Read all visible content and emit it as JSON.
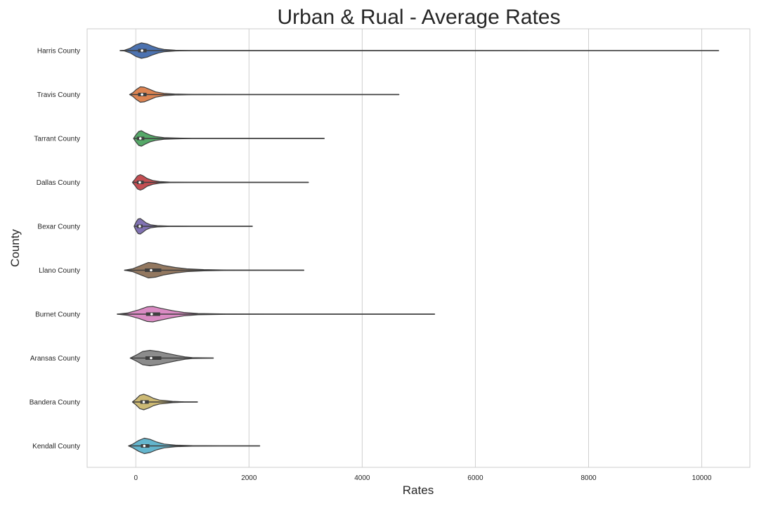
{
  "chart_data": {
    "type": "violin",
    "orientation": "horizontal",
    "title": "Urban & Rual - Average Rates",
    "xlabel": "Rates",
    "ylabel": "County",
    "xlim": [
      -860,
      10850
    ],
    "xticks": [
      0,
      2000,
      4000,
      6000,
      8000,
      10000
    ],
    "grid": "x",
    "legend": "none",
    "style": {
      "grid_color": "#d0d0d0",
      "frame_color": "#cccccc",
      "line_color": "#3f3f3f",
      "background": "#ffffff"
    },
    "series": [
      {
        "category": "Harris County",
        "color": "#4c72b0",
        "min": -280,
        "q1": 40,
        "median": 110,
        "q3": 190,
        "max": 10300,
        "profile": [
          [
            -280,
            0.0
          ],
          [
            -200,
            0.05
          ],
          [
            -100,
            0.3
          ],
          [
            0,
            0.75
          ],
          [
            100,
            1.0
          ],
          [
            200,
            0.85
          ],
          [
            300,
            0.55
          ],
          [
            400,
            0.3
          ],
          [
            500,
            0.15
          ],
          [
            700,
            0.05
          ],
          [
            1000,
            0.02
          ],
          [
            2000,
            0.008
          ],
          [
            5000,
            0.005
          ],
          [
            10300,
            0.003
          ]
        ]
      },
      {
        "category": "Travis County",
        "color": "#dd8452",
        "min": -110,
        "q1": 40,
        "median": 110,
        "q3": 190,
        "max": 4650,
        "profile": [
          [
            -110,
            0.0
          ],
          [
            -50,
            0.25
          ],
          [
            0,
            0.6
          ],
          [
            80,
            1.0
          ],
          [
            150,
            0.95
          ],
          [
            250,
            0.65
          ],
          [
            350,
            0.35
          ],
          [
            500,
            0.15
          ],
          [
            700,
            0.06
          ],
          [
            1000,
            0.03
          ],
          [
            2000,
            0.01
          ],
          [
            4650,
            0.005
          ]
        ]
      },
      {
        "category": "Tarrant County",
        "color": "#55a868",
        "min": -40,
        "q1": 20,
        "median": 80,
        "q3": 150,
        "max": 3330,
        "profile": [
          [
            -40,
            0.0
          ],
          [
            0,
            0.45
          ],
          [
            50,
            0.9
          ],
          [
            100,
            1.0
          ],
          [
            160,
            0.75
          ],
          [
            250,
            0.45
          ],
          [
            350,
            0.25
          ],
          [
            500,
            0.1
          ],
          [
            700,
            0.05
          ],
          [
            1000,
            0.02
          ],
          [
            3330,
            0.005
          ]
        ]
      },
      {
        "category": "Dallas County",
        "color": "#c44e52",
        "min": -60,
        "q1": 20,
        "median": 70,
        "q3": 140,
        "max": 3050,
        "profile": [
          [
            -60,
            0.0
          ],
          [
            -20,
            0.35
          ],
          [
            30,
            0.85
          ],
          [
            80,
            1.0
          ],
          [
            130,
            0.85
          ],
          [
            200,
            0.5
          ],
          [
            300,
            0.25
          ],
          [
            420,
            0.1
          ],
          [
            600,
            0.04
          ],
          [
            1000,
            0.015
          ],
          [
            3050,
            0.005
          ]
        ]
      },
      {
        "category": "Bexar County",
        "color": "#8172b3",
        "min": -30,
        "q1": 20,
        "median": 70,
        "q3": 120,
        "max": 2060,
        "profile": [
          [
            -30,
            0.0
          ],
          [
            0,
            0.5
          ],
          [
            40,
            0.95
          ],
          [
            80,
            1.0
          ],
          [
            120,
            0.8
          ],
          [
            180,
            0.45
          ],
          [
            260,
            0.2
          ],
          [
            380,
            0.08
          ],
          [
            600,
            0.03
          ],
          [
            1000,
            0.012
          ],
          [
            2060,
            0.005
          ]
        ]
      },
      {
        "category": "Llano County",
        "color": "#937860",
        "min": -200,
        "q1": 160,
        "median": 270,
        "q3": 450,
        "max": 2970,
        "profile": [
          [
            -200,
            0.0
          ],
          [
            -50,
            0.2
          ],
          [
            100,
            0.65
          ],
          [
            220,
            1.0
          ],
          [
            350,
            0.9
          ],
          [
            500,
            0.6
          ],
          [
            700,
            0.35
          ],
          [
            900,
            0.18
          ],
          [
            1200,
            0.08
          ],
          [
            1600,
            0.03
          ],
          [
            2970,
            0.005
          ]
        ]
      },
      {
        "category": "Burnet County",
        "color": "#da8bc3",
        "min": -330,
        "q1": 180,
        "median": 280,
        "q3": 430,
        "max": 5280,
        "profile": [
          [
            -330,
            0.0
          ],
          [
            -150,
            0.15
          ],
          [
            50,
            0.55
          ],
          [
            200,
            0.95
          ],
          [
            300,
            1.0
          ],
          [
            450,
            0.75
          ],
          [
            650,
            0.45
          ],
          [
            850,
            0.22
          ],
          [
            1100,
            0.08
          ],
          [
            1600,
            0.03
          ],
          [
            3000,
            0.01
          ],
          [
            5280,
            0.005
          ]
        ]
      },
      {
        "category": "Aransas County",
        "color": "#8c8c8c",
        "min": -100,
        "q1": 170,
        "median": 270,
        "q3": 450,
        "max": 1370,
        "profile": [
          [
            -100,
            0.0
          ],
          [
            0,
            0.35
          ],
          [
            120,
            0.85
          ],
          [
            250,
            1.0
          ],
          [
            400,
            0.85
          ],
          [
            560,
            0.6
          ],
          [
            720,
            0.35
          ],
          [
            870,
            0.15
          ],
          [
            1000,
            0.05
          ],
          [
            1370,
            0.01
          ]
        ]
      },
      {
        "category": "Bandera County",
        "color": "#ccb974",
        "min": -60,
        "q1": 80,
        "median": 140,
        "q3": 230,
        "max": 1090,
        "profile": [
          [
            -60,
            0.0
          ],
          [
            0,
            0.35
          ],
          [
            70,
            0.85
          ],
          [
            140,
            1.0
          ],
          [
            220,
            0.8
          ],
          [
            320,
            0.45
          ],
          [
            420,
            0.25
          ],
          [
            520,
            0.18
          ],
          [
            650,
            0.08
          ],
          [
            850,
            0.03
          ],
          [
            1090,
            0.01
          ]
        ]
      },
      {
        "category": "Kendall County",
        "color": "#64b5cd",
        "min": -130,
        "q1": 90,
        "median": 150,
        "q3": 240,
        "max": 2190,
        "profile": [
          [
            -130,
            0.0
          ],
          [
            -50,
            0.25
          ],
          [
            50,
            0.7
          ],
          [
            150,
            1.0
          ],
          [
            250,
            0.85
          ],
          [
            370,
            0.5
          ],
          [
            500,
            0.25
          ],
          [
            700,
            0.1
          ],
          [
            1000,
            0.04
          ],
          [
            1500,
            0.015
          ],
          [
            2190,
            0.005
          ]
        ]
      }
    ]
  }
}
